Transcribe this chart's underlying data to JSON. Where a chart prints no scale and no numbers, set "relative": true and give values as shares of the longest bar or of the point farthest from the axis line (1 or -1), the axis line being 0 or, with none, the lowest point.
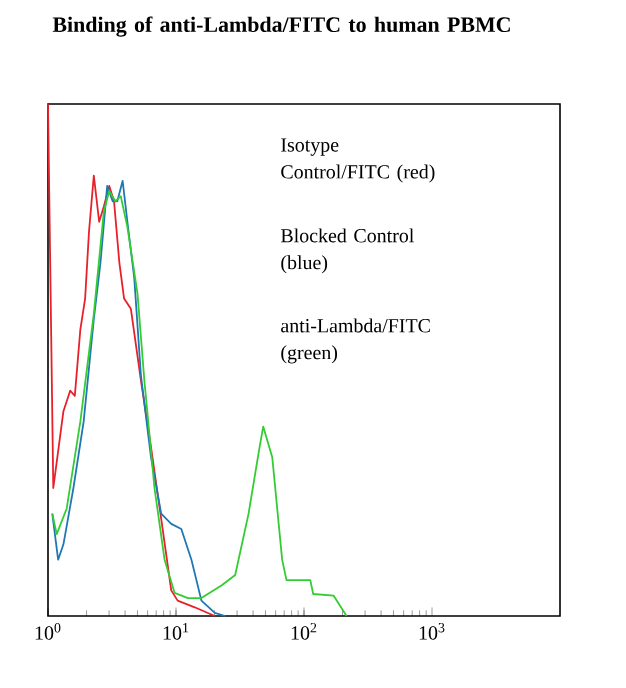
{
  "chart_data": {
    "type": "line",
    "title": "Binding of anti-Lambda/FITC to human PBMC",
    "relative": true,
    "log": "x",
    "xlim": [
      1,
      10000
    ],
    "xticks": [
      {
        "value": 1,
        "label": "10$^{0}$"
      },
      {
        "value": 10,
        "label": "10$^{1}$"
      },
      {
        "value": 100,
        "label": "10$^{2}$"
      },
      {
        "value": 1000,
        "label": "10$^{3}$"
      }
    ],
    "annotations": [
      "Isotype Control/FITC (red)",
      "Blocked Control (blue)",
      "anti-Lambda/FITC (green)"
    ],
    "series": [
      {
        "color": "#e8202a",
        "x": [
          1.0,
          1.1,
          1.32,
          1.49,
          1.62,
          1.79,
          1.95,
          2.09,
          2.28,
          2.51,
          2.73,
          3.01,
          3.28,
          3.61,
          3.93,
          4.44,
          5.32,
          6.38,
          7.66,
          9.18,
          10.3,
          14.0,
          20.1
        ],
        "values": [
          1.0,
          0.25,
          0.4,
          0.44,
          0.43,
          0.56,
          0.62,
          0.75,
          0.86,
          0.77,
          0.8,
          0.84,
          0.81,
          0.69,
          0.62,
          0.6,
          0.46,
          0.33,
          0.19,
          0.05,
          0.03,
          0.017,
          0
        ]
      },
      {
        "color": "#1f78b4",
        "x": [
          1.08,
          1.2,
          1.32,
          1.58,
          1.9,
          2.28,
          2.57,
          2.9,
          3.2,
          3.48,
          3.83,
          4.17,
          4.72,
          5.32,
          6.38,
          7.66,
          9.18,
          11.0,
          13.2,
          15.8,
          20.1,
          24.2
        ],
        "values": [
          0.2,
          0.11,
          0.14,
          0.25,
          0.38,
          0.58,
          0.69,
          0.84,
          0.81,
          0.81,
          0.85,
          0.77,
          0.66,
          0.47,
          0.31,
          0.2,
          0.18,
          0.17,
          0.11,
          0.03,
          0.006,
          0
        ]
      },
      {
        "color": "#33cc33",
        "x": [
          1.08,
          1.17,
          1.4,
          1.79,
          2.28,
          2.73,
          3.01,
          3.36,
          3.7,
          4.17,
          5.0,
          5.66,
          6.79,
          8.14,
          9.76,
          12.4,
          15.8,
          22.8,
          29.0,
          36.9,
          44.3,
          48.0,
          56.5,
          67.5,
          73.0,
          112.0,
          118.0,
          170.0,
          215.0
        ],
        "values": [
          0.2,
          0.16,
          0.21,
          0.38,
          0.59,
          0.79,
          0.83,
          0.81,
          0.82,
          0.76,
          0.63,
          0.46,
          0.25,
          0.11,
          0.045,
          0.035,
          0.035,
          0.06,
          0.08,
          0.2,
          0.32,
          0.37,
          0.31,
          0.11,
          0.07,
          0.07,
          0.043,
          0.04,
          0
        ]
      }
    ]
  }
}
